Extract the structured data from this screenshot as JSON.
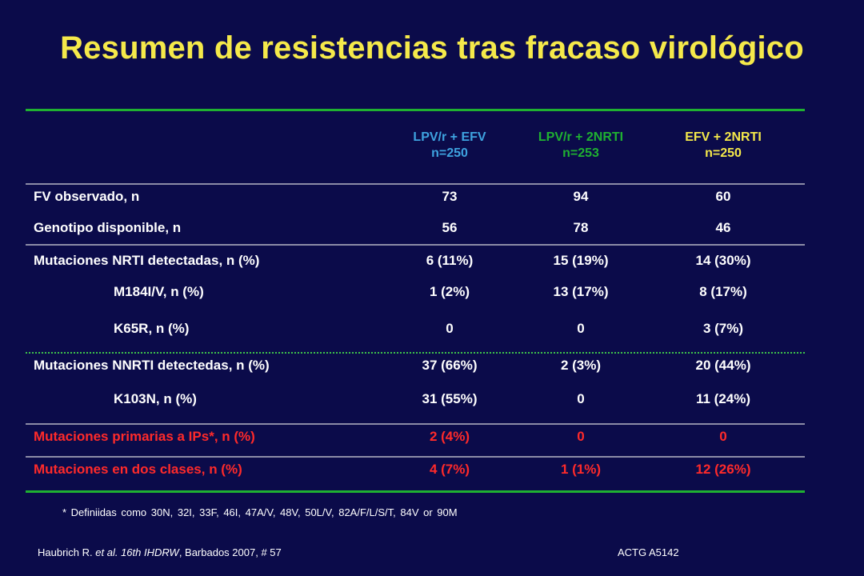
{
  "title": "Resumen de resistencias tras fracaso virológico",
  "columns": [
    {
      "name": "LPV/r + EFV",
      "n": "n=250",
      "color": "#3ea3e0"
    },
    {
      "name": "LPV/r + 2NRTI",
      "n": "n=253",
      "color": "#1fb131"
    },
    {
      "name": "EFV + 2NRTI",
      "n": "n=250",
      "color": "#f5e94a"
    }
  ],
  "rows": [
    {
      "label": "FV observado, n",
      "values": [
        "73",
        "94",
        "60"
      ]
    },
    {
      "label": "Genotipo disponible, n",
      "values": [
        "56",
        "78",
        "46"
      ]
    },
    {
      "label": "Mutaciones NRTI detectadas, n (%)",
      "values": [
        "6 (11%)",
        "15 (19%)",
        "14 (30%)"
      ]
    },
    {
      "label": "M184I/V, n (%)",
      "values": [
        "1 (2%)",
        "13 (17%)",
        "8 (17%)"
      ]
    },
    {
      "label": "K65R, n (%)",
      "values": [
        "0",
        "0",
        "3 (7%)"
      ]
    },
    {
      "label": "Mutaciones NNRTI detectedas, n (%)",
      "values": [
        "37 (66%)",
        "2 (3%)",
        "20 (44%)"
      ]
    },
    {
      "label": "K103N, n (%)",
      "values": [
        "31 (55%)",
        "0",
        "11 (24%)"
      ]
    },
    {
      "label": "Mutaciones primarias a IPs*, n (%)",
      "values": [
        "2 (4%)",
        "0",
        "0"
      ]
    },
    {
      "label": "Mutaciones en dos clases, n (%)",
      "values": [
        "4 (7%)",
        "1 (1%)",
        "12 (26%)"
      ]
    }
  ],
  "footnote": "* Definiidas como 30N, 32I, 33F, 46I, 47A/V, 48V, 50L/V, 82A/F/L/S/T, 84V or 90M",
  "reference": {
    "authors": "Haubrich R.",
    "etal": "et al.",
    "meeting": "16th IHDRW",
    "rest": ", Barbados 2007, # 57"
  },
  "study": "ACTG A5142"
}
